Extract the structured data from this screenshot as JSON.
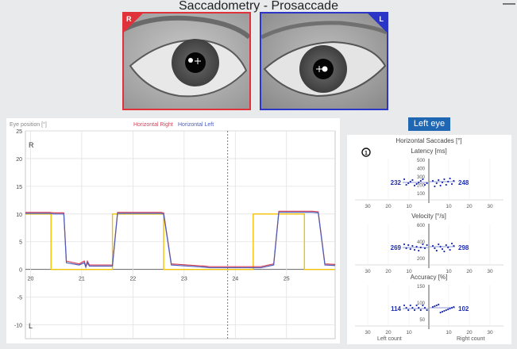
{
  "title": "Saccadometry - Prosaccade",
  "window": {
    "minimize_glyph": "—"
  },
  "eyes": {
    "right_badge": "R",
    "left_badge": "L",
    "right_color": "#e0323a",
    "left_color": "#2b35c8"
  },
  "main_chart": {
    "ylabel": "Eye position [°]",
    "legend": [
      {
        "name": "Horizontal Right",
        "color": "#d23f57"
      },
      {
        "name": "Horizontal Left",
        "color": "#4d5fb8"
      }
    ],
    "stimulus_color": "#f4c300",
    "side_labels": {
      "top": "R",
      "bottom": "L"
    },
    "y_ticks": [
      25,
      20,
      15,
      10,
      5,
      0,
      -5,
      -10
    ],
    "x_ticks": [
      20,
      21,
      22,
      23,
      24,
      25
    ],
    "ylim": [
      -12.5,
      25
    ],
    "xlim": [
      19.9,
      25.95
    ],
    "cursor_x": 23.85
  },
  "chart_data": {
    "type": "line",
    "x": [
      19.9,
      20.38,
      20.45,
      20.65,
      20.7,
      20.95,
      21.05,
      21.08,
      21.11,
      21.15,
      21.6,
      21.7,
      22.55,
      22.6,
      22.75,
      23.4,
      23.5,
      24.5,
      24.75,
      24.85,
      25.5,
      25.62,
      25.75,
      25.95
    ],
    "series": [
      {
        "name": "Horizontal Right",
        "values": [
          10.3,
          10.3,
          10.2,
          10.2,
          1.5,
          1.0,
          1.5,
          0.5,
          1.5,
          0.8,
          0.8,
          10.3,
          10.3,
          10.2,
          1.0,
          0.6,
          0.5,
          0.5,
          1.0,
          10.5,
          10.5,
          10.4,
          1.0,
          0.9
        ]
      },
      {
        "name": "Horizontal Left",
        "values": [
          10.1,
          10.1,
          10.0,
          10.0,
          1.2,
          0.8,
          1.2,
          0.4,
          1.2,
          0.6,
          0.6,
          10.1,
          10.1,
          10.0,
          0.8,
          0.4,
          0.3,
          0.3,
          0.8,
          10.3,
          10.3,
          10.2,
          0.8,
          0.7
        ]
      }
    ],
    "stimulus": {
      "x": [
        19.9,
        20.4,
        20.4,
        21.6,
        21.6,
        22.6,
        22.6,
        24.35,
        24.35,
        25.35,
        25.35,
        25.95
      ],
      "values": [
        10,
        10,
        0,
        0,
        10,
        10,
        0,
        0,
        10,
        10,
        0,
        0
      ]
    }
  },
  "eye_button": {
    "label": "Left eye"
  },
  "saccade_panel": {
    "heading": "Horizontal Saccades [°]",
    "info_icon": "circled-1-icon",
    "x_ticks": [
      "30",
      "20",
      "10",
      "10",
      "20",
      "30"
    ],
    "footer_left": "Left count",
    "footer_right": "Right count",
    "charts": [
      {
        "label": "Latency [ms]",
        "y_ticks": [
          "500",
          "400",
          "300",
          "200",
          "100"
        ],
        "left_value": "232",
        "right_value": "248"
      },
      {
        "label": "Velocity [°/s]",
        "y_ticks": [
          "600",
          "400",
          "200"
        ],
        "left_value": "269",
        "right_value": "298"
      },
      {
        "label": "Accuracy [%]",
        "y_ticks": [
          "150",
          "100",
          "50"
        ],
        "left_value": "114",
        "right_value": "102"
      }
    ]
  }
}
